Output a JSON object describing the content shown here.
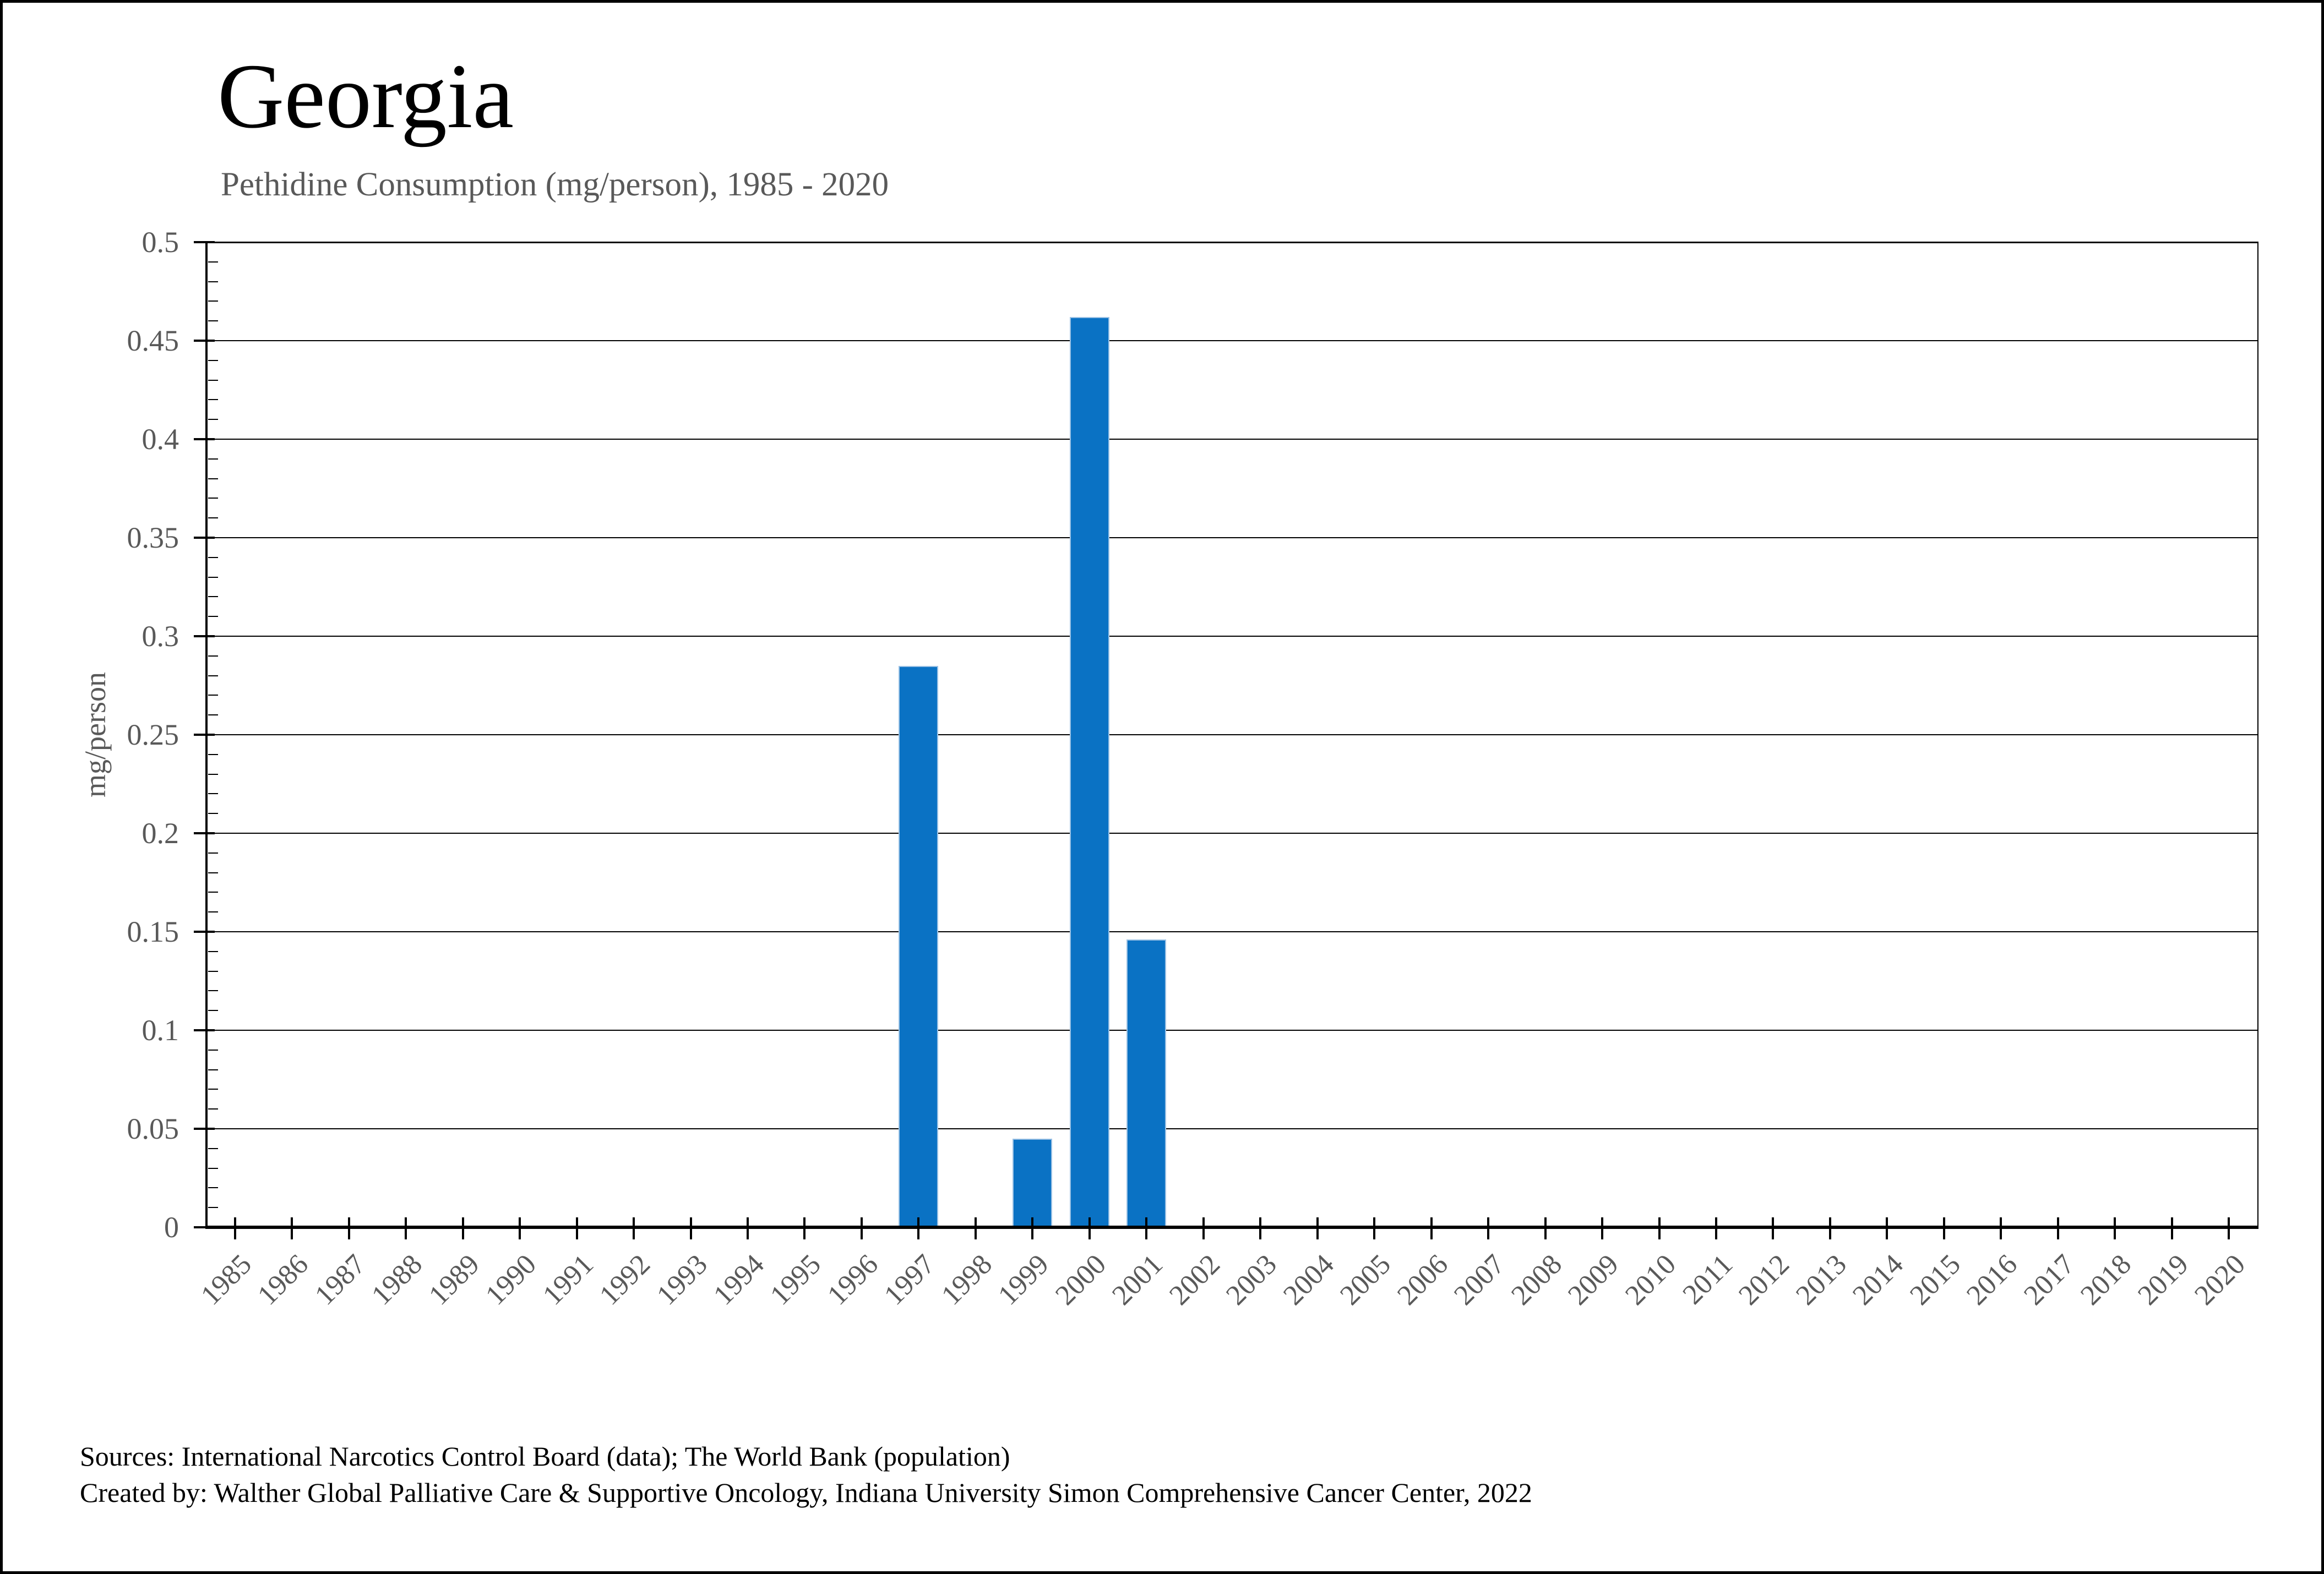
{
  "page": {
    "footer": {
      "line1": "Sources: International Narcotics Control Board (data); The World Bank (population)",
      "line2": "Created by: Walther Global Palliative Care & Supportive Oncology, Indiana University Simon Comprehensive Cancer Center, 2022"
    }
  },
  "chart_data": {
    "type": "bar",
    "title": "Georgia",
    "subtitle": "Pethidine Consumption (mg/person), 1985 - 2020",
    "ylabel": "mg/person",
    "xlabel": "",
    "categories": [
      "1985",
      "1986",
      "1987",
      "1988",
      "1989",
      "1990",
      "1991",
      "1992",
      "1993",
      "1994",
      "1995",
      "1996",
      "1997",
      "1998",
      "1999",
      "2000",
      "2001",
      "2002",
      "2003",
      "2004",
      "2005",
      "2006",
      "2007",
      "2008",
      "2009",
      "2010",
      "2011",
      "2012",
      "2013",
      "2014",
      "2015",
      "2016",
      "2017",
      "2018",
      "2019",
      "2020"
    ],
    "values": [
      0,
      0,
      0,
      0,
      0,
      0,
      0,
      0,
      0,
      0,
      0,
      0,
      0.285,
      0,
      0.045,
      0.462,
      0.146,
      0,
      0,
      0,
      0,
      0,
      0,
      0,
      0,
      0,
      0,
      0,
      0,
      0,
      0,
      0,
      0,
      0,
      0,
      0
    ],
    "ylim": [
      0,
      0.5
    ],
    "ytick_step": 0.05,
    "ytick_labels": [
      "0",
      "0.05",
      "0.1",
      "0.15",
      "0.2",
      "0.25",
      "0.3",
      "0.35",
      "0.4",
      "0.45",
      "0.5"
    ],
    "minor_tick_step": 0.01,
    "grid": "horizontal-major",
    "legend": "none",
    "bar_width_fraction": 0.7,
    "colors": {
      "bar_fill": "#0A72C4",
      "bar_edge": "#9CC2E5",
      "axis": "#000000",
      "gridline": "#000000",
      "muted_text": "#595959",
      "title_text": "#000000"
    }
  }
}
